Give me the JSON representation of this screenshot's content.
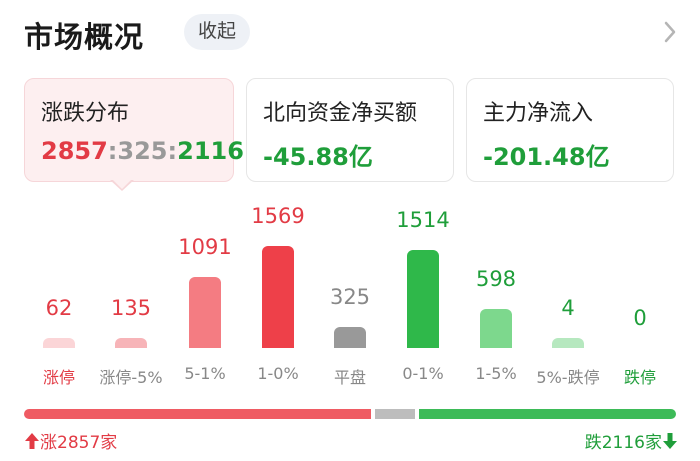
{
  "header": {
    "title": "市场概况",
    "collapse_label": "收起"
  },
  "cards": {
    "updown": {
      "label": "涨跌分布",
      "up": "2857",
      "sep1": ":",
      "flat": "325",
      "sep2": ":",
      "down": "2116"
    },
    "northbound": {
      "label": "北向资金净买额",
      "value": "-45.88亿"
    },
    "mainforce": {
      "label": "主力净流入",
      "value": "-201.48亿"
    }
  },
  "colors": {
    "up_strong": "#ee4049",
    "up_mid": "#f47c82",
    "up_light": "#f7b4b8",
    "up_faint": "#fbd5d7",
    "flat": "#999999",
    "down_strong": "#2fb84a",
    "down_mid": "#7dd88d",
    "down_light": "#b6e8bf",
    "up_text": "#e23b45",
    "down_text": "#1f9e3a"
  },
  "chart_data": {
    "type": "bar",
    "categories": [
      "涨停",
      "涨停-5%",
      "5-1%",
      "1-0%",
      "平盘",
      "0-1%",
      "1-5%",
      "5%-跌停",
      "跌停"
    ],
    "values": [
      62,
      135,
      1091,
      1569,
      325,
      1514,
      598,
      4,
      0
    ],
    "value_labels": [
      "62",
      "135",
      "1091",
      "1569",
      "325",
      "1514",
      "598",
      "4",
      "0"
    ],
    "ylim": [
      0,
      1569
    ]
  },
  "distribution": {
    "up_count": 2857,
    "flat_count": 325,
    "down_count": 2116
  },
  "footer": {
    "up_label": "涨2857家",
    "down_label": "跌2116家"
  }
}
